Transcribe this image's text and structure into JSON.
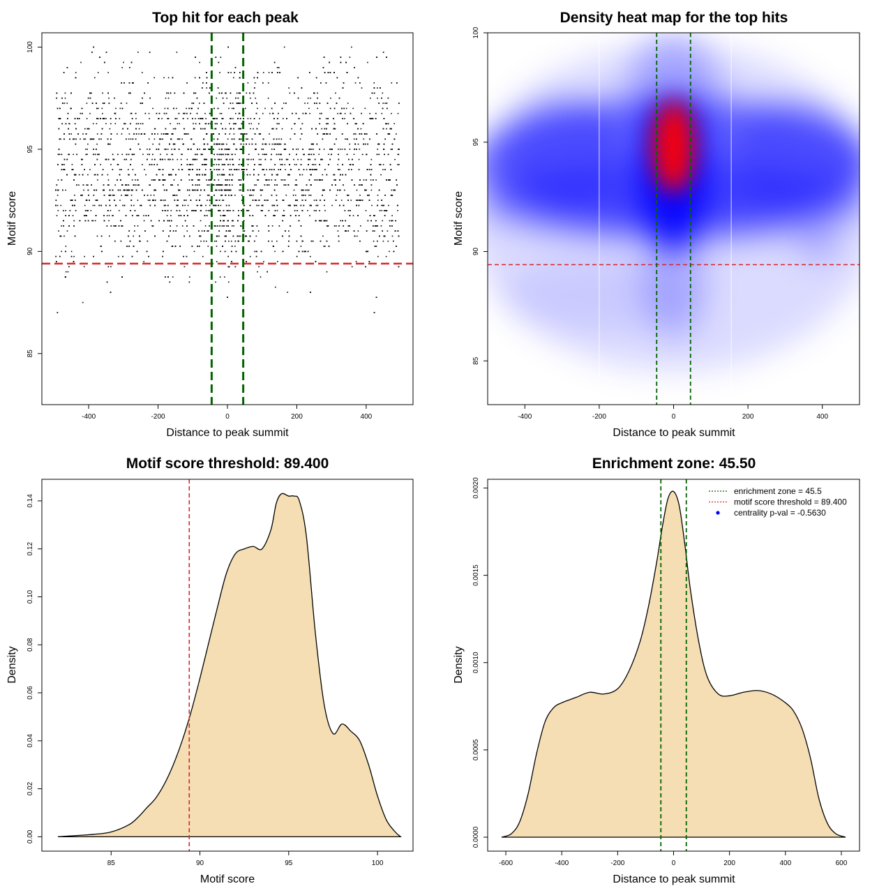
{
  "chart_data": [
    {
      "type": "scatter",
      "title": "Top hit for each peak",
      "xlabel": "Distance to peak summit",
      "ylabel": "Motif score",
      "xlim": [
        -535,
        535
      ],
      "ylim": [
        82.5,
        100.7
      ],
      "x_ticks": [
        -400,
        -200,
        0,
        200,
        400
      ],
      "y_ticks": [
        85,
        90,
        95,
        100
      ],
      "x_tick_labels": [
        "-400",
        "-200",
        "0",
        "200",
        "400"
      ],
      "y_tick_labels": [
        "85",
        "90",
        "95",
        "100"
      ],
      "point_color": "#000000",
      "threshold_color": "#d62728",
      "zone_color": "#006400",
      "threshold": 89.4,
      "zone": [
        -45.5,
        45.5
      ],
      "grid": false
    },
    {
      "type": "heatmap",
      "title": "Density heat map for the top hits",
      "xlabel": "Distance to peak summit",
      "ylabel": "Motif score",
      "xlim": [
        -500,
        500
      ],
      "ylim": [
        83,
        100
      ],
      "x_ticks": [
        -400,
        -200,
        0,
        200,
        400
      ],
      "y_ticks": [
        85,
        90,
        95,
        100
      ],
      "x_tick_labels": [
        "-400",
        "-200",
        "0",
        "200",
        "400"
      ],
      "y_tick_labels": [
        "85",
        "90",
        "95",
        "100"
      ],
      "low_color": "#ffffff",
      "mid_color": "#0000ff",
      "high_color": "#ff0000",
      "hotspot": [
        0,
        94.8
      ],
      "threshold": 89.4,
      "zone": [
        -45.5,
        45.5
      ],
      "grid": false
    },
    {
      "type": "area",
      "title": "Motif score threshold: 89.400",
      "xlabel": "Motif score",
      "ylabel": "Density",
      "xlim": [
        81.1,
        102.0
      ],
      "ylim": [
        -0.006,
        0.149
      ],
      "x_ticks": [
        85,
        90,
        95,
        100
      ],
      "y_ticks": [
        0.0,
        0.02,
        0.04,
        0.06,
        0.08,
        0.1,
        0.12,
        0.14
      ],
      "x_tick_labels": [
        "85",
        "90",
        "95",
        "100"
      ],
      "y_tick_labels": [
        "0.00",
        "0.02",
        "0.04",
        "0.06",
        "0.08",
        "0.10",
        "0.12",
        "0.14"
      ],
      "fill_color": "#f5deb3",
      "line_color": "#000000",
      "threshold": 89.4,
      "threshold_color": "#d62728",
      "x": [
        82,
        84,
        85,
        86,
        86.5,
        87,
        87.5,
        88,
        88.5,
        89,
        89.5,
        90,
        90.5,
        91,
        91.5,
        92,
        92.5,
        93,
        93.5,
        94,
        94.3,
        94.6,
        95,
        95.3,
        95.6,
        96,
        96.5,
        97,
        97.5,
        98,
        98.5,
        99,
        99.5,
        100,
        100.5,
        101,
        101.3
      ],
      "y": [
        0.0,
        0.001,
        0.002,
        0.005,
        0.008,
        0.012,
        0.016,
        0.022,
        0.03,
        0.04,
        0.052,
        0.066,
        0.081,
        0.096,
        0.11,
        0.118,
        0.12,
        0.121,
        0.12,
        0.128,
        0.139,
        0.143,
        0.142,
        0.142,
        0.14,
        0.125,
        0.085,
        0.055,
        0.043,
        0.047,
        0.044,
        0.04,
        0.03,
        0.017,
        0.007,
        0.002,
        0.0
      ],
      "grid": false
    },
    {
      "type": "area",
      "title": "Enrichment zone: 45.50",
      "xlabel": "Distance to peak summit",
      "ylabel": "Density",
      "xlim": [
        -665,
        665
      ],
      "ylim": [
        -8e-05,
        0.00205
      ],
      "x_ticks": [
        -600,
        -400,
        -200,
        0,
        200,
        400,
        600
      ],
      "y_ticks": [
        0.0,
        0.0005,
        0.001,
        0.0015,
        0.002
      ],
      "x_tick_labels": [
        "-600",
        "-400",
        "-200",
        "0",
        "200",
        "400",
        "600"
      ],
      "y_tick_labels": [
        "0.0000",
        "0.0005",
        "0.0010",
        "0.0015",
        "0.0020"
      ],
      "fill_color": "#f5deb3",
      "line_color": "#000000",
      "zone": [
        -45.5,
        45.5
      ],
      "zone_color": "#006400",
      "x": [
        -615,
        -580,
        -550,
        -520,
        -490,
        -460,
        -430,
        -400,
        -350,
        -300,
        -250,
        -200,
        -160,
        -120,
        -90,
        -60,
        -40,
        -20,
        0,
        20,
        40,
        60,
        90,
        120,
        160,
        200,
        250,
        300,
        350,
        400,
        430,
        460,
        490,
        520,
        550,
        580,
        615
      ],
      "y": [
        0.0,
        2e-05,
        9e-05,
        0.00025,
        0.00048,
        0.00066,
        0.00074,
        0.00077,
        0.0008,
        0.00083,
        0.00082,
        0.00085,
        0.00095,
        0.00112,
        0.00132,
        0.00158,
        0.00178,
        0.00194,
        0.00198,
        0.0019,
        0.00168,
        0.00142,
        0.00112,
        0.00092,
        0.00082,
        0.00081,
        0.00083,
        0.00084,
        0.00082,
        0.00077,
        0.00072,
        0.00062,
        0.00045,
        0.00022,
        8e-05,
        2e-05,
        0.0
      ],
      "grid": false,
      "legend": {
        "position": "top-right",
        "entries": [
          {
            "label": "enrichment zone = 45.5",
            "color": "#006400",
            "style": "dotted-line"
          },
          {
            "label": "motif score threshold = 89.400",
            "color": "#d62728",
            "style": "dotted-line"
          },
          {
            "label": "centrality p-val = -0.5630",
            "color": "#0000ff",
            "style": "point"
          }
        ]
      }
    }
  ]
}
